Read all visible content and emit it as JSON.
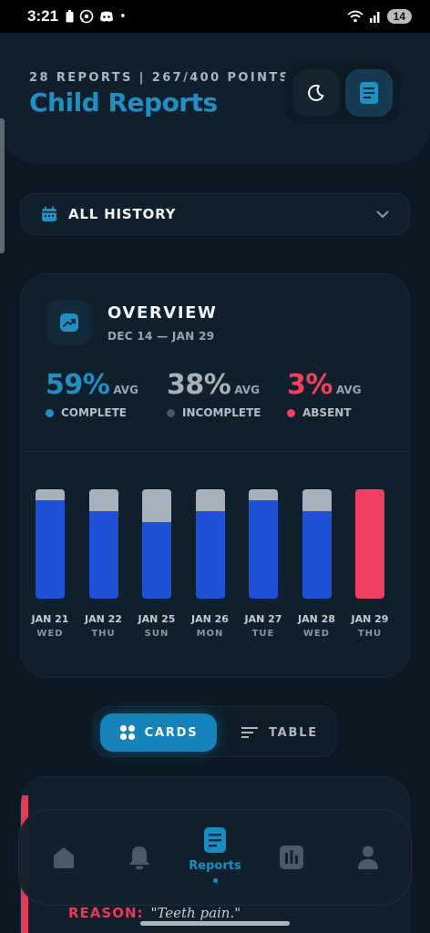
{
  "status_bar": {
    "time": "3:21",
    "battery": "14"
  },
  "header": {
    "subtitle": "28 REPORTS | 267/400 POINTS",
    "title": "Child Reports",
    "theme_icon": "moon-icon",
    "report_icon": "document-icon"
  },
  "filter": {
    "label": "ALL HISTORY",
    "icon": "calendar-icon"
  },
  "overview": {
    "title": "OVERVIEW",
    "range": "DEC 14 — JAN 29",
    "stats": [
      {
        "value": "59%",
        "avg": "AVG",
        "label": "COMPLETE",
        "color": "#1f8fc4"
      },
      {
        "value": "38%",
        "avg": "AVG",
        "label": "INCOMPLETE",
        "color": "#a8b1b8"
      },
      {
        "value": "3%",
        "avg": "AVG",
        "label": "ABSENT",
        "color": "#f1405f"
      }
    ]
  },
  "chart_data": {
    "type": "bar",
    "stacked": true,
    "categories": [
      "JAN 21",
      "JAN 22",
      "JAN 25",
      "JAN 26",
      "JAN 27",
      "JAN 28",
      "JAN 29"
    ],
    "weekdays": [
      "WED",
      "THU",
      "SUN",
      "MON",
      "TUE",
      "WED",
      "THU"
    ],
    "series": [
      {
        "key": "complete",
        "color": "#1f51d6",
        "values": [
          90,
          80,
          70,
          80,
          90,
          80,
          0
        ]
      },
      {
        "key": "incomplete",
        "color": "#a7b1ba",
        "values": [
          10,
          20,
          30,
          20,
          10,
          20,
          0
        ]
      },
      {
        "key": "absent",
        "color": "#f1405f",
        "values": [
          0,
          0,
          0,
          0,
          0,
          0,
          100
        ]
      }
    ],
    "ylim": [
      0,
      100
    ],
    "grid": false
  },
  "view_toggle": {
    "cards_label": "CARDS",
    "table_label": "TABLE",
    "selected": "cards"
  },
  "report_card": {
    "reason_label": "REASON:",
    "reason_text": "\"Teeth pain.\""
  },
  "bottom_nav": {
    "items": [
      {
        "icon": "home-icon",
        "label": ""
      },
      {
        "icon": "bell-icon",
        "label": ""
      },
      {
        "icon": "document-icon",
        "label": "Reports",
        "active": true
      },
      {
        "icon": "bar-chart-icon",
        "label": ""
      },
      {
        "icon": "user-icon",
        "label": ""
      }
    ]
  }
}
